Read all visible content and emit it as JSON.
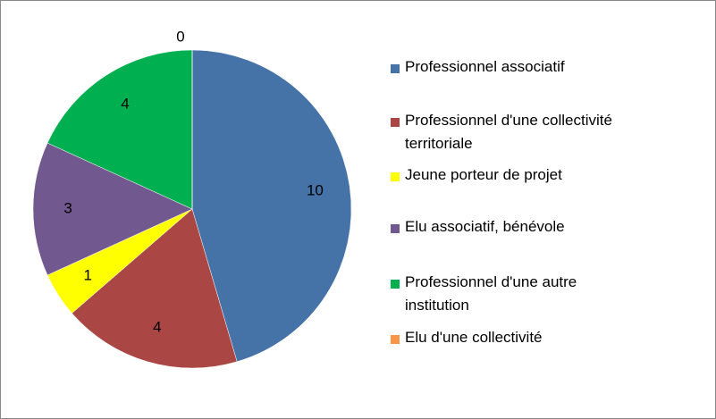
{
  "chart_data": {
    "type": "pie",
    "categories": [
      "Professionnel associatif",
      "Professionnel d'une collectivité territoriale",
      "Jeune porteur de projet",
      "Elu associatif, bénévole",
      "Professionnel d'une autre institution",
      "Elu d'une collectivité"
    ],
    "values": [
      10,
      4,
      1,
      3,
      4,
      0
    ],
    "colors": [
      "#4572a7",
      "#aa4643",
      "#ffff00",
      "#71588f",
      "#00b050",
      "#f79646"
    ]
  }
}
